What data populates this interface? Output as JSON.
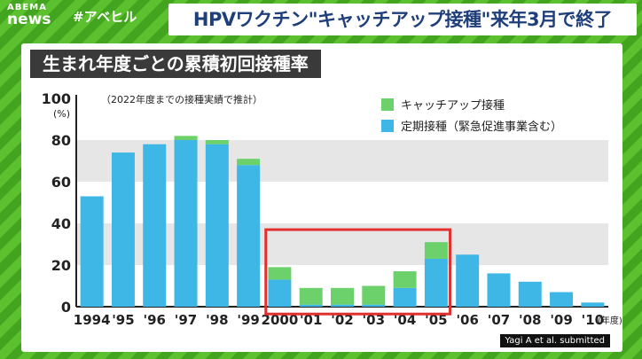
{
  "header": {
    "logo_top": "ABEMA",
    "logo_bottom": "news",
    "hashtag": "#アベヒル",
    "headline": "HPVワクチン\"キャッチアップ接種\"来年3月で終了"
  },
  "colors": {
    "catchup": "#6dd16b",
    "regular": "#3fb7e6",
    "highlight": "#e03030",
    "band": "#e6e6e6"
  },
  "chart_data": {
    "type": "bar",
    "stacked": true,
    "title": "生まれ年度ごとの累積初回接種率",
    "subtitle": "（2022年度までの接種実績で推計）",
    "ylabel": "(%)",
    "xlabel_unit": "(年度)",
    "ylim": [
      0,
      100
    ],
    "y_ticks": [
      0,
      20,
      40,
      60,
      80,
      100
    ],
    "categories": [
      "1994",
      "'95",
      "'96",
      "'97",
      "'98",
      "'99",
      "2000",
      "'01",
      "'02",
      "'03",
      "'04",
      "'05",
      "'06",
      "'07",
      "'08",
      "'09",
      "'10"
    ],
    "series": [
      {
        "name": "定期接種（緊急促進事業含む）",
        "values": [
          53,
          74,
          78,
          80,
          78,
          68,
          13,
          1,
          1,
          1,
          9,
          23,
          25,
          16,
          12,
          7,
          2
        ]
      },
      {
        "name": "キャッチアップ接種",
        "values": [
          0,
          0,
          0,
          2,
          2,
          3,
          6,
          8,
          8,
          9,
          8,
          8,
          0,
          0,
          0,
          0,
          0
        ]
      }
    ],
    "highlight_range": [
      "2000",
      "'05"
    ],
    "legend_position": "top-right",
    "source": "Yagi A et al. submitted"
  }
}
